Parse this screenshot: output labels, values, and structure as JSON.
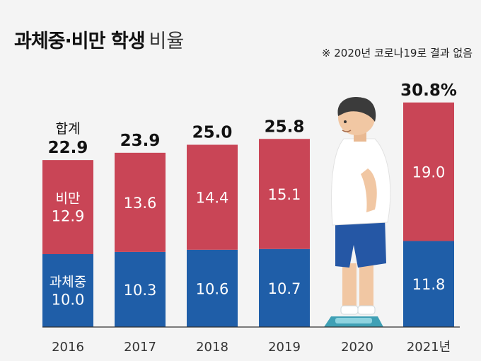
{
  "header": {
    "title_bold": "과체중·비만 학생",
    "title_light": "비율",
    "note": "※ 2020년 코로나19로 결과 없음"
  },
  "colors": {
    "overweight": "#1f5ea8",
    "obese": "#c94556",
    "axis": "#333333",
    "background": "#f4f4f4"
  },
  "chart_data": {
    "type": "bar",
    "stacked": true,
    "categories": [
      "2016",
      "2017",
      "2018",
      "2019",
      "2020",
      "2021년"
    ],
    "series": [
      {
        "name": "과체중",
        "values": [
          10.0,
          10.3,
          10.6,
          10.7,
          null,
          11.8
        ]
      },
      {
        "name": "비만",
        "values": [
          12.9,
          13.6,
          14.4,
          15.1,
          null,
          19.0
        ]
      }
    ],
    "totals": [
      "22.9",
      "23.9",
      "25.0",
      "25.8",
      "",
      "30.8%"
    ],
    "total_label": "합계",
    "first_bar_series_labels": [
      "과체중",
      "비만"
    ],
    "illustration": "overweight-student-on-scale-icon"
  }
}
